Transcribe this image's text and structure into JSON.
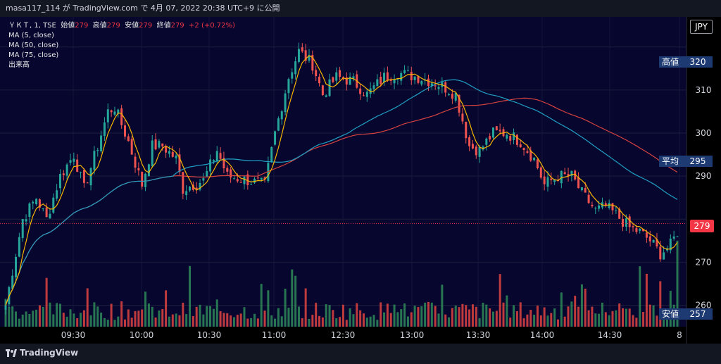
{
  "header": {
    "caption": "masa117_114 が TradingView.com で 4月 07, 2022 20:38 UTC+9 に公開"
  },
  "legend": {
    "symbol": "ＹＫＴ, 1, TSE",
    "open_label": "始値",
    "open": "279",
    "high_label": "高値",
    "high": "279",
    "low_label": "安値",
    "low": "279",
    "close_label": "終値",
    "close": "279",
    "change": "+2 (+0.72%)",
    "ma5": "MA (5, close)",
    "ma50": "MA (50, close)",
    "ma75": "MA (75, close)",
    "volume": "出来高"
  },
  "currency": "JPY",
  "price_labels": {
    "high_label": "高値",
    "high_value": "320",
    "avg_label": "平均",
    "avg_value": "295",
    "low_label": "安値",
    "low_value": "257",
    "current_value": "279"
  },
  "footer": {
    "brand": "TradingView"
  },
  "colors": {
    "background": "#000000",
    "plot_bg": "#06062e",
    "up": "#26a69a",
    "down": "#ef5350",
    "ma5": "#f7b500",
    "ma50": "#21a0c4",
    "ma75": "#d84340",
    "label_bg": "#1e3a73",
    "current": "#f23645"
  },
  "chart_data": {
    "type": "candlestick",
    "ylim": [
      255,
      327
    ],
    "y_ticks": [
      260,
      270,
      280,
      290,
      300,
      310,
      320
    ],
    "y_tick_labels": [
      "260",
      "270",
      "",
      "290",
      "300",
      "310",
      ""
    ],
    "x_ticks": [
      "09:30",
      "10:00",
      "10:30",
      "11:00",
      "12:30",
      "13:00",
      "13:30",
      "14:00",
      "14:30",
      "8"
    ],
    "price_path": [
      [
        0,
        260
      ],
      [
        2,
        268
      ],
      [
        5,
        280
      ],
      [
        9,
        285
      ],
      [
        12,
        280
      ],
      [
        16,
        290
      ],
      [
        20,
        295
      ],
      [
        23,
        287
      ],
      [
        27,
        297
      ],
      [
        30,
        305
      ],
      [
        32,
        306
      ],
      [
        36,
        298
      ],
      [
        40,
        288
      ],
      [
        43,
        297
      ],
      [
        46,
        297
      ],
      [
        50,
        294
      ],
      [
        52,
        287
      ],
      [
        58,
        289
      ],
      [
        62,
        296
      ],
      [
        65,
        290
      ],
      [
        71,
        289
      ],
      [
        76,
        288
      ],
      [
        79,
        300
      ],
      [
        83,
        313
      ],
      [
        86,
        319
      ],
      [
        90,
        316
      ],
      [
        93,
        309
      ],
      [
        97,
        313
      ],
      [
        102,
        312
      ],
      [
        106,
        309
      ],
      [
        111,
        313
      ],
      [
        115,
        314
      ],
      [
        121,
        313
      ],
      [
        125,
        312
      ],
      [
        128,
        311
      ],
      [
        132,
        309
      ],
      [
        136,
        297
      ],
      [
        139,
        296
      ],
      [
        143,
        300
      ],
      [
        147,
        300
      ],
      [
        151,
        298
      ],
      [
        155,
        294
      ],
      [
        158,
        288
      ],
      [
        162,
        290
      ],
      [
        166,
        290
      ],
      [
        169,
        286
      ],
      [
        173,
        282
      ],
      [
        176,
        283
      ],
      [
        179,
        281
      ],
      [
        183,
        278
      ],
      [
        186,
        277
      ],
      [
        189,
        275
      ],
      [
        192,
        272
      ],
      [
        195,
        274
      ],
      [
        197,
        277
      ]
    ],
    "volume_range": [
      0,
      100
    ]
  }
}
